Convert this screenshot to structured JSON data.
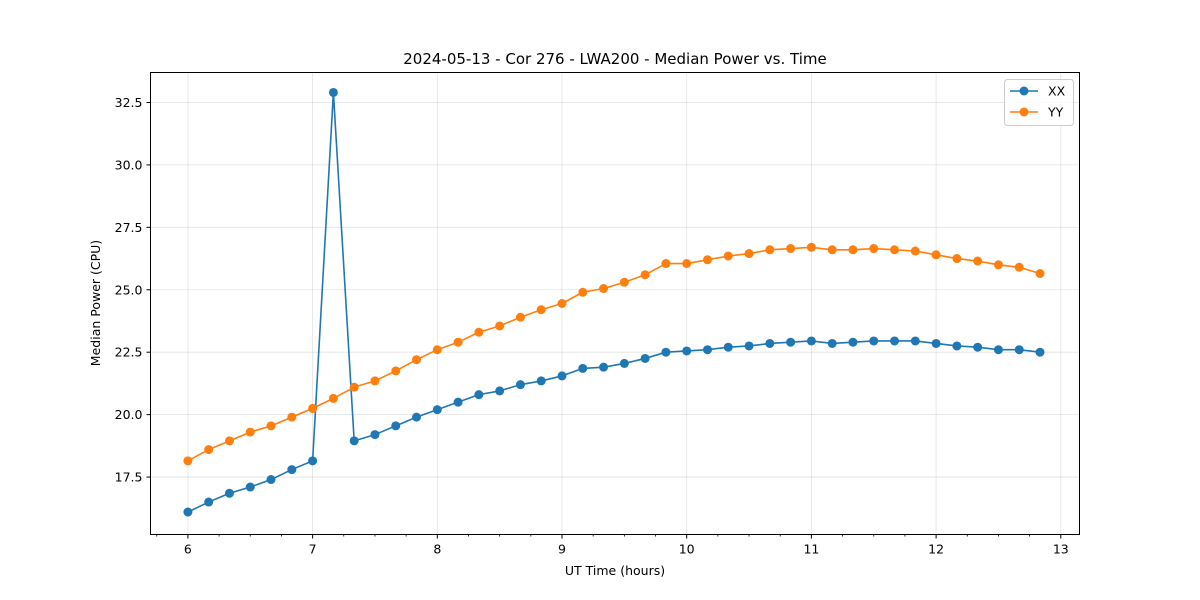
{
  "chart_data": {
    "type": "line",
    "title": "2024-05-13 - Cor 276 - LWA200 - Median Power vs. Time",
    "xlabel": "UT Time (hours)",
    "ylabel": "Median Power (CPU)",
    "xlim": [
      5.7,
      13.15
    ],
    "ylim": [
      15.2,
      33.7
    ],
    "xticks": [
      6,
      7,
      8,
      9,
      10,
      11,
      12,
      13
    ],
    "xtick_labels": [
      "6",
      "7",
      "8",
      "9",
      "10",
      "11",
      "12",
      "13"
    ],
    "yticks": [
      17.5,
      20.0,
      22.5,
      25.0,
      27.5,
      30.0,
      32.5
    ],
    "ytick_labels": [
      "17.5",
      "20.0",
      "22.5",
      "25.0",
      "27.5",
      "30.0",
      "32.5"
    ],
    "grid": true,
    "legend_position": "top-right",
    "x": [
      6.0,
      6.1667,
      6.3333,
      6.5,
      6.6667,
      6.8333,
      7.0,
      7.1667,
      7.3333,
      7.5,
      7.6667,
      7.8333,
      8.0,
      8.1667,
      8.3333,
      8.5,
      8.6667,
      8.8333,
      9.0,
      9.1667,
      9.3333,
      9.5,
      9.6667,
      9.8333,
      10.0,
      10.1667,
      10.3333,
      10.5,
      10.6667,
      10.8333,
      11.0,
      11.1667,
      11.3333,
      11.5,
      11.6667,
      11.8333,
      12.0,
      12.1667,
      12.3333,
      12.5,
      12.6667,
      12.8333
    ],
    "series": [
      {
        "name": "XX",
        "color": "#1f77b4",
        "values": [
          16.1,
          16.5,
          16.85,
          17.1,
          17.4,
          17.8,
          18.15,
          32.9,
          18.95,
          19.2,
          19.55,
          19.9,
          20.2,
          20.5,
          20.8,
          20.95,
          21.2,
          21.35,
          21.55,
          21.85,
          21.9,
          22.05,
          22.25,
          22.5,
          22.55,
          22.6,
          22.7,
          22.75,
          22.85,
          22.9,
          22.95,
          22.85,
          22.9,
          22.95,
          22.95,
          22.95,
          22.85,
          22.75,
          22.7,
          22.6,
          22.6,
          22.5
        ]
      },
      {
        "name": "YY",
        "color": "#ff7f0e",
        "values": [
          18.15,
          18.6,
          18.95,
          19.3,
          19.55,
          19.9,
          20.25,
          20.65,
          21.1,
          21.35,
          21.75,
          22.2,
          22.6,
          22.9,
          23.3,
          23.55,
          23.9,
          24.2,
          24.45,
          24.9,
          25.05,
          25.3,
          25.6,
          26.05,
          26.05,
          26.2,
          26.35,
          26.45,
          26.6,
          26.65,
          26.7,
          26.6,
          26.6,
          26.65,
          26.6,
          26.55,
          26.4,
          26.25,
          26.15,
          26.0,
          25.9,
          25.65
        ]
      }
    ]
  }
}
